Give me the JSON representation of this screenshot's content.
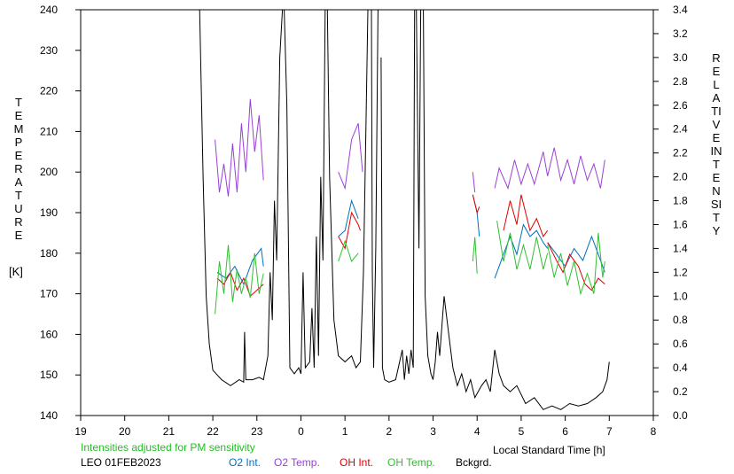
{
  "chart_data": {
    "type": "line",
    "xlabel": "Local Standard Time [h]",
    "ylabel_left": "TEMPERATURE",
    "ylabel_left_unit": "[K]",
    "ylabel_right": "RELATIVE INTENSITY",
    "x_ticks": [
      "19",
      "20",
      "21",
      "22",
      "23",
      "0",
      "1",
      "2",
      "3",
      "4",
      "5",
      "6",
      "7",
      "8"
    ],
    "y_left_ticks": [
      "140",
      "150",
      "160",
      "170",
      "180",
      "190",
      "200",
      "210",
      "220",
      "230",
      "240"
    ],
    "y_right_ticks": [
      "0.0",
      "0.2",
      "0.4",
      "0.6",
      "0.8",
      "1.0",
      "1.2",
      "1.4",
      "1.6",
      "1.8",
      "2.0",
      "2.2",
      "2.4",
      "2.6",
      "2.8",
      "3.0",
      "3.2",
      "3.4"
    ],
    "xlim_hours": [
      19,
      32
    ],
    "ylim_left": [
      140,
      240
    ],
    "ylim_right": [
      0.0,
      3.4
    ],
    "note": "Intensities adjusted for PM sensitivity",
    "station": "LEO 01FEB2023",
    "colors": {
      "o2_int": "#0070c0",
      "o2_temp": "#9a40d8",
      "oh_int": "#e00000",
      "oh_temp": "#30c030",
      "bckgrd": "#000000",
      "note": "#20c020"
    },
    "series": [
      {
        "name": "O2 Int.",
        "axis": "right",
        "segments": [
          [
            [
              22.1,
              1.2
            ],
            [
              22.3,
              1.15
            ],
            [
              22.5,
              1.25
            ],
            [
              22.7,
              1.1
            ],
            [
              22.9,
              1.3
            ],
            [
              23.1,
              1.4
            ],
            [
              23.15,
              1.25
            ]
          ],
          [
            [
              24.85,
              1.5
            ],
            [
              25.0,
              1.55
            ],
            [
              25.15,
              1.8
            ],
            [
              25.3,
              1.65
            ]
          ],
          [
            [
              27.9,
              1.85
            ],
            [
              28.0,
              1.7
            ],
            [
              28.05,
              1.5
            ]
          ],
          [
            [
              28.4,
              1.15
            ],
            [
              28.6,
              1.35
            ],
            [
              28.75,
              1.5
            ],
            [
              28.9,
              1.35
            ],
            [
              29.05,
              1.6
            ],
            [
              29.2,
              1.5
            ],
            [
              29.35,
              1.55
            ],
            [
              29.5,
              1.45
            ],
            [
              29.6,
              1.4
            ]
          ],
          [
            [
              29.6,
              1.45
            ],
            [
              29.8,
              1.35
            ],
            [
              30.0,
              1.25
            ],
            [
              30.2,
              1.4
            ],
            [
              30.4,
              1.3
            ],
            [
              30.6,
              1.5
            ],
            [
              30.75,
              1.35
            ],
            [
              30.9,
              1.2
            ]
          ]
        ]
      },
      {
        "name": "O2 Temp.",
        "axis": "left",
        "segments": [
          [
            [
              22.05,
              208
            ],
            [
              22.15,
              195
            ],
            [
              22.25,
              202
            ],
            [
              22.35,
              194
            ],
            [
              22.45,
              207
            ],
            [
              22.55,
              195
            ],
            [
              22.65,
              212
            ],
            [
              22.75,
              200
            ],
            [
              22.85,
              218
            ],
            [
              22.95,
              205
            ],
            [
              23.05,
              214
            ],
            [
              23.15,
              198
            ]
          ],
          [
            [
              24.85,
              200
            ],
            [
              25.0,
              196
            ],
            [
              25.15,
              208
            ],
            [
              25.3,
              212
            ],
            [
              25.4,
              200
            ]
          ],
          [
            [
              27.9,
              200
            ],
            [
              27.95,
              195
            ]
          ],
          [
            [
              28.4,
              196
            ],
            [
              28.5,
              201
            ],
            [
              28.7,
              196
            ],
            [
              28.85,
              203
            ],
            [
              29.0,
              197
            ],
            [
              29.15,
              202
            ],
            [
              29.3,
              197
            ],
            [
              29.5,
              205
            ],
            [
              29.6,
              199
            ],
            [
              29.75,
              206
            ],
            [
              29.9,
              198
            ],
            [
              30.05,
              203
            ],
            [
              30.2,
              197
            ],
            [
              30.35,
              204
            ],
            [
              30.5,
              198
            ],
            [
              30.65,
              202
            ],
            [
              30.8,
              196
            ],
            [
              30.9,
              203
            ]
          ]
        ]
      },
      {
        "name": "OH Int.",
        "axis": "right",
        "segments": [
          [
            [
              22.1,
              1.15
            ],
            [
              22.25,
              1.1
            ],
            [
              22.4,
              1.2
            ],
            [
              22.55,
              1.05
            ],
            [
              22.7,
              1.15
            ],
            [
              22.85,
              1.0
            ],
            [
              23.0,
              1.05
            ],
            [
              23.15,
              1.1
            ]
          ],
          [
            [
              24.85,
              1.5
            ],
            [
              25.0,
              1.4
            ],
            [
              25.15,
              1.7
            ],
            [
              25.3,
              1.6
            ],
            [
              25.35,
              1.55
            ]
          ],
          [
            [
              27.9,
              1.85
            ],
            [
              28.0,
              1.7
            ],
            [
              28.05,
              1.75
            ]
          ],
          [
            [
              28.6,
              1.55
            ],
            [
              28.75,
              1.8
            ],
            [
              28.9,
              1.6
            ],
            [
              29.0,
              1.85
            ],
            [
              29.1,
              1.7
            ],
            [
              29.2,
              1.55
            ],
            [
              29.35,
              1.65
            ],
            [
              29.5,
              1.5
            ],
            [
              29.6,
              1.55
            ]
          ],
          [
            [
              29.6,
              1.45
            ],
            [
              29.8,
              1.3
            ],
            [
              29.95,
              1.2
            ],
            [
              30.1,
              1.35
            ],
            [
              30.3,
              1.25
            ],
            [
              30.45,
              1.1
            ],
            [
              30.6,
              1.05
            ],
            [
              30.75,
              1.15
            ],
            [
              30.9,
              1.1
            ]
          ]
        ]
      },
      {
        "name": "OH Temp.",
        "axis": "left",
        "segments": [
          [
            [
              22.05,
              165
            ],
            [
              22.15,
              178
            ],
            [
              22.25,
              170
            ],
            [
              22.35,
              182
            ],
            [
              22.45,
              168
            ],
            [
              22.55,
              176
            ],
            [
              22.65,
              170
            ],
            [
              22.75,
              174
            ],
            [
              22.85,
              169
            ],
            [
              22.95,
              180
            ],
            [
              23.05,
              170
            ],
            [
              23.15,
              175
            ]
          ],
          [
            [
              24.85,
              178
            ],
            [
              25.0,
              183
            ],
            [
              25.15,
              178
            ],
            [
              25.3,
              180
            ]
          ],
          [
            [
              27.9,
              178
            ],
            [
              27.95,
              184
            ],
            [
              28.0,
              175
            ]
          ],
          [
            [
              28.45,
              188
            ],
            [
              28.6,
              178
            ],
            [
              28.75,
              185
            ],
            [
              28.9,
              176
            ],
            [
              29.05,
              182
            ],
            [
              29.2,
              176
            ],
            [
              29.35,
              184
            ],
            [
              29.5,
              176
            ],
            [
              29.6,
              180
            ]
          ],
          [
            [
              29.6,
              182
            ],
            [
              29.75,
              174
            ],
            [
              29.9,
              180
            ],
            [
              30.05,
              172
            ],
            [
              30.2,
              178
            ],
            [
              30.35,
              170
            ],
            [
              30.5,
              175
            ],
            [
              30.65,
              170
            ],
            [
              30.75,
              185
            ],
            [
              30.85,
              174
            ],
            [
              30.9,
              178
            ]
          ]
        ]
      },
      {
        "name": "Bckgrd.",
        "axis": "right",
        "segments": [
          [
            [
              21.7,
              3.4
            ],
            [
              21.78,
              2.0
            ],
            [
              21.85,
              1.0
            ],
            [
              21.92,
              0.6
            ],
            [
              22.0,
              0.38
            ],
            [
              22.2,
              0.3
            ],
            [
              22.4,
              0.25
            ],
            [
              22.6,
              0.3
            ],
            [
              22.7,
              0.28
            ],
            [
              22.72,
              0.7
            ],
            [
              22.75,
              0.3
            ],
            [
              22.9,
              0.3
            ],
            [
              23.05,
              0.32
            ],
            [
              23.15,
              0.3
            ],
            [
              23.25,
              0.5
            ],
            [
              23.3,
              1.2
            ],
            [
              23.35,
              0.8
            ],
            [
              23.4,
              1.8
            ],
            [
              23.45,
              1.3
            ],
            [
              23.52,
              3.0
            ],
            [
              23.58,
              3.4
            ]
          ],
          [
            [
              23.62,
              3.4
            ],
            [
              23.68,
              2.6
            ],
            [
              23.75,
              0.4
            ],
            [
              23.85,
              0.35
            ],
            [
              23.95,
              0.4
            ],
            [
              24.0,
              0.35
            ],
            [
              24.05,
              1.2
            ],
            [
              24.1,
              0.4
            ],
            [
              24.2,
              0.45
            ],
            [
              24.25,
              0.9
            ],
            [
              24.3,
              0.4
            ],
            [
              24.35,
              1.5
            ],
            [
              24.4,
              0.5
            ],
            [
              24.45,
              2.0
            ],
            [
              24.5,
              1.3
            ],
            [
              24.55,
              3.4
            ]
          ],
          [
            [
              24.6,
              3.4
            ],
            [
              24.65,
              2.0
            ],
            [
              24.75,
              0.8
            ],
            [
              24.85,
              0.5
            ],
            [
              25.0,
              0.45
            ],
            [
              25.15,
              0.5
            ],
            [
              25.25,
              0.4
            ],
            [
              25.35,
              0.45
            ],
            [
              25.42,
              1.2
            ],
            [
              25.48,
              2.5
            ],
            [
              25.52,
              3.4
            ]
          ],
          [
            [
              25.6,
              3.4
            ],
            [
              25.62,
              1.2
            ],
            [
              25.65,
              0.4
            ],
            [
              25.7,
              1.4
            ],
            [
              25.75,
              3.4
            ]
          ],
          [
            [
              25.82,
              3.0
            ],
            [
              25.85,
              0.4
            ],
            [
              25.9,
              0.3
            ],
            [
              26.0,
              0.28
            ],
            [
              26.15,
              0.3
            ],
            [
              26.3,
              0.55
            ],
            [
              26.35,
              0.3
            ],
            [
              26.4,
              0.5
            ],
            [
              26.45,
              0.35
            ],
            [
              26.5,
              0.55
            ],
            [
              26.55,
              0.4
            ],
            [
              26.58,
              3.4
            ]
          ],
          [
            [
              26.62,
              3.4
            ],
            [
              26.68,
              1.4
            ],
            [
              26.72,
              3.4
            ]
          ],
          [
            [
              26.78,
              3.4
            ],
            [
              26.82,
              1.0
            ],
            [
              26.88,
              0.5
            ],
            [
              26.95,
              0.35
            ],
            [
              27.0,
              0.3
            ],
            [
              27.05,
              0.45
            ],
            [
              27.1,
              0.7
            ],
            [
              27.15,
              0.5
            ],
            [
              27.25,
              1.0
            ],
            [
              27.35,
              0.7
            ],
            [
              27.45,
              0.4
            ],
            [
              27.55,
              0.25
            ],
            [
              27.65,
              0.35
            ],
            [
              27.75,
              0.2
            ],
            [
              27.85,
              0.3
            ],
            [
              27.95,
              0.15
            ],
            [
              28.1,
              0.25
            ],
            [
              28.2,
              0.3
            ],
            [
              28.3,
              0.2
            ],
            [
              28.4,
              0.55
            ],
            [
              28.5,
              0.35
            ],
            [
              28.6,
              0.25
            ],
            [
              28.75,
              0.2
            ],
            [
              28.9,
              0.25
            ],
            [
              29.1,
              0.1
            ],
            [
              29.3,
              0.15
            ],
            [
              29.5,
              0.05
            ],
            [
              29.7,
              0.08
            ],
            [
              29.9,
              0.05
            ],
            [
              30.1,
              0.1
            ],
            [
              30.3,
              0.08
            ],
            [
              30.5,
              0.1
            ],
            [
              30.7,
              0.15
            ],
            [
              30.85,
              0.2
            ],
            [
              30.95,
              0.3
            ],
            [
              31.0,
              0.45
            ]
          ]
        ]
      }
    ]
  }
}
